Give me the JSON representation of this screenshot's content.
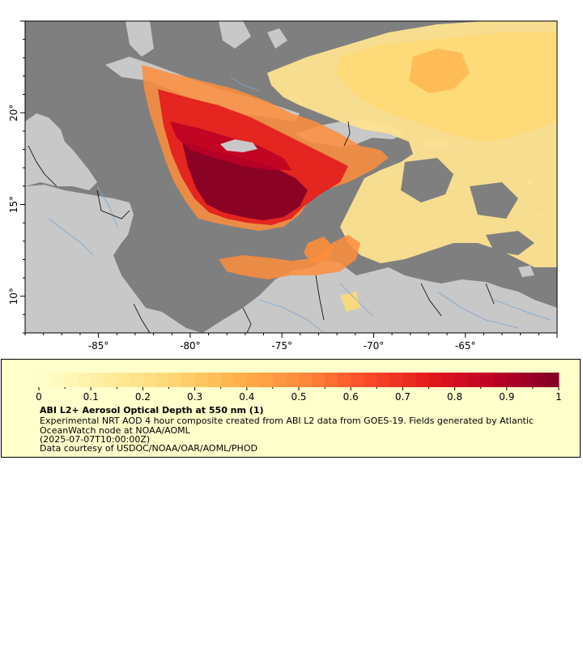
{
  "map": {
    "x_ticks": [
      {
        "label": "-85°",
        "lon": -85
      },
      {
        "label": "-80°",
        "lon": -80
      },
      {
        "label": "-75°",
        "lon": -75
      },
      {
        "label": "-70°",
        "lon": -70
      },
      {
        "label": "-65°",
        "lon": -65
      }
    ],
    "y_ticks": [
      {
        "label": "20°",
        "lat": 20
      },
      {
        "label": "15°",
        "lat": 15
      },
      {
        "label": "10°",
        "lat": 10
      }
    ],
    "extent": {
      "lon_min": -89,
      "lon_max": -60,
      "lat_min": 8,
      "lat_max": 25
    },
    "colors": {
      "no_data": "#7f7f7f",
      "land": "#c8c8c8",
      "border": "#000000",
      "river": "#7aa6d0"
    }
  },
  "legend": {
    "tick_labels": [
      "0",
      "0.1",
      "0.2",
      "0.3",
      "0.4",
      "0.5",
      "0.6",
      "0.7",
      "0.8",
      "0.9",
      "1"
    ],
    "range": [
      0,
      1
    ],
    "colormap": [
      "#ffffcc",
      "#ffeda0",
      "#fed976",
      "#feb24c",
      "#fd8d3c",
      "#fc4e2a",
      "#e31a1c",
      "#bd0026",
      "#800026"
    ],
    "title": "ABI L2+ Aerosol Optical Depth at 550 nm (1)",
    "description": "Experimental NRT AOD 4 hour composite created from ABI L2 data from GOES-19. Fields generated by Atlantic OceanWatch node at NOAA/AOML",
    "date": "(2025-07-07T10:00:00Z)",
    "credit": "Data courtesy of USDOC/NOAA/OAR/AOML/PHOD"
  }
}
